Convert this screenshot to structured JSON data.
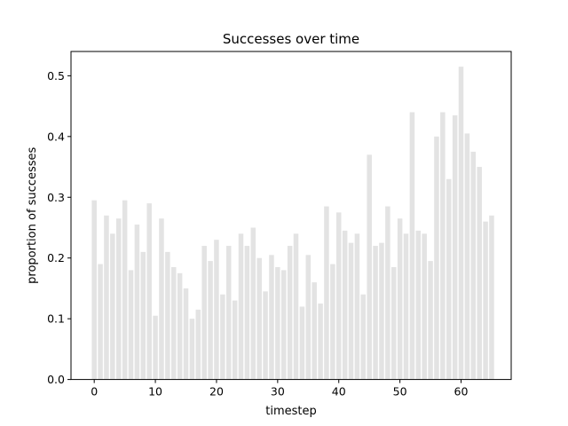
{
  "chart_data": {
    "type": "bar",
    "title": "Successes over time",
    "xlabel": "timestep",
    "ylabel": "proportion of successes",
    "bar_color": "#e3e3e3",
    "xlim": [
      -3.8,
      68.2
    ],
    "ylim": [
      0.0,
      0.54
    ],
    "x_ticks": [
      0,
      10,
      20,
      30,
      40,
      50,
      60
    ],
    "y_ticks": [
      0.0,
      0.1,
      0.2,
      0.3,
      0.4,
      0.5
    ],
    "y_tick_labels": [
      "0.0",
      "0.1",
      "0.2",
      "0.3",
      "0.4",
      "0.5"
    ],
    "grid": false,
    "legend": "none",
    "x": [
      0,
      1,
      2,
      3,
      4,
      5,
      6,
      7,
      8,
      9,
      10,
      11,
      12,
      13,
      14,
      15,
      16,
      17,
      18,
      19,
      20,
      21,
      22,
      23,
      24,
      25,
      26,
      27,
      28,
      29,
      30,
      31,
      32,
      33,
      34,
      35,
      36,
      37,
      38,
      39,
      40,
      41,
      42,
      43,
      44,
      45,
      46,
      47,
      48,
      49,
      50,
      51,
      52,
      53,
      54,
      55,
      56,
      57,
      58,
      59,
      60,
      61,
      62,
      63,
      64,
      65
    ],
    "values": [
      0.295,
      0.19,
      0.27,
      0.24,
      0.265,
      0.295,
      0.18,
      0.255,
      0.21,
      0.29,
      0.105,
      0.265,
      0.21,
      0.185,
      0.175,
      0.15,
      0.1,
      0.115,
      0.22,
      0.195,
      0.23,
      0.14,
      0.22,
      0.13,
      0.24,
      0.22,
      0.25,
      0.2,
      0.145,
      0.205,
      0.185,
      0.18,
      0.22,
      0.24,
      0.12,
      0.205,
      0.16,
      0.125,
      0.285,
      0.19,
      0.275,
      0.245,
      0.225,
      0.24,
      0.14,
      0.37,
      0.22,
      0.225,
      0.285,
      0.185,
      0.265,
      0.24,
      0.44,
      0.245,
      0.24,
      0.195,
      0.4,
      0.44,
      0.33,
      0.435,
      0.515,
      0.405,
      0.375,
      0.35,
      0.26,
      0.27
    ]
  }
}
